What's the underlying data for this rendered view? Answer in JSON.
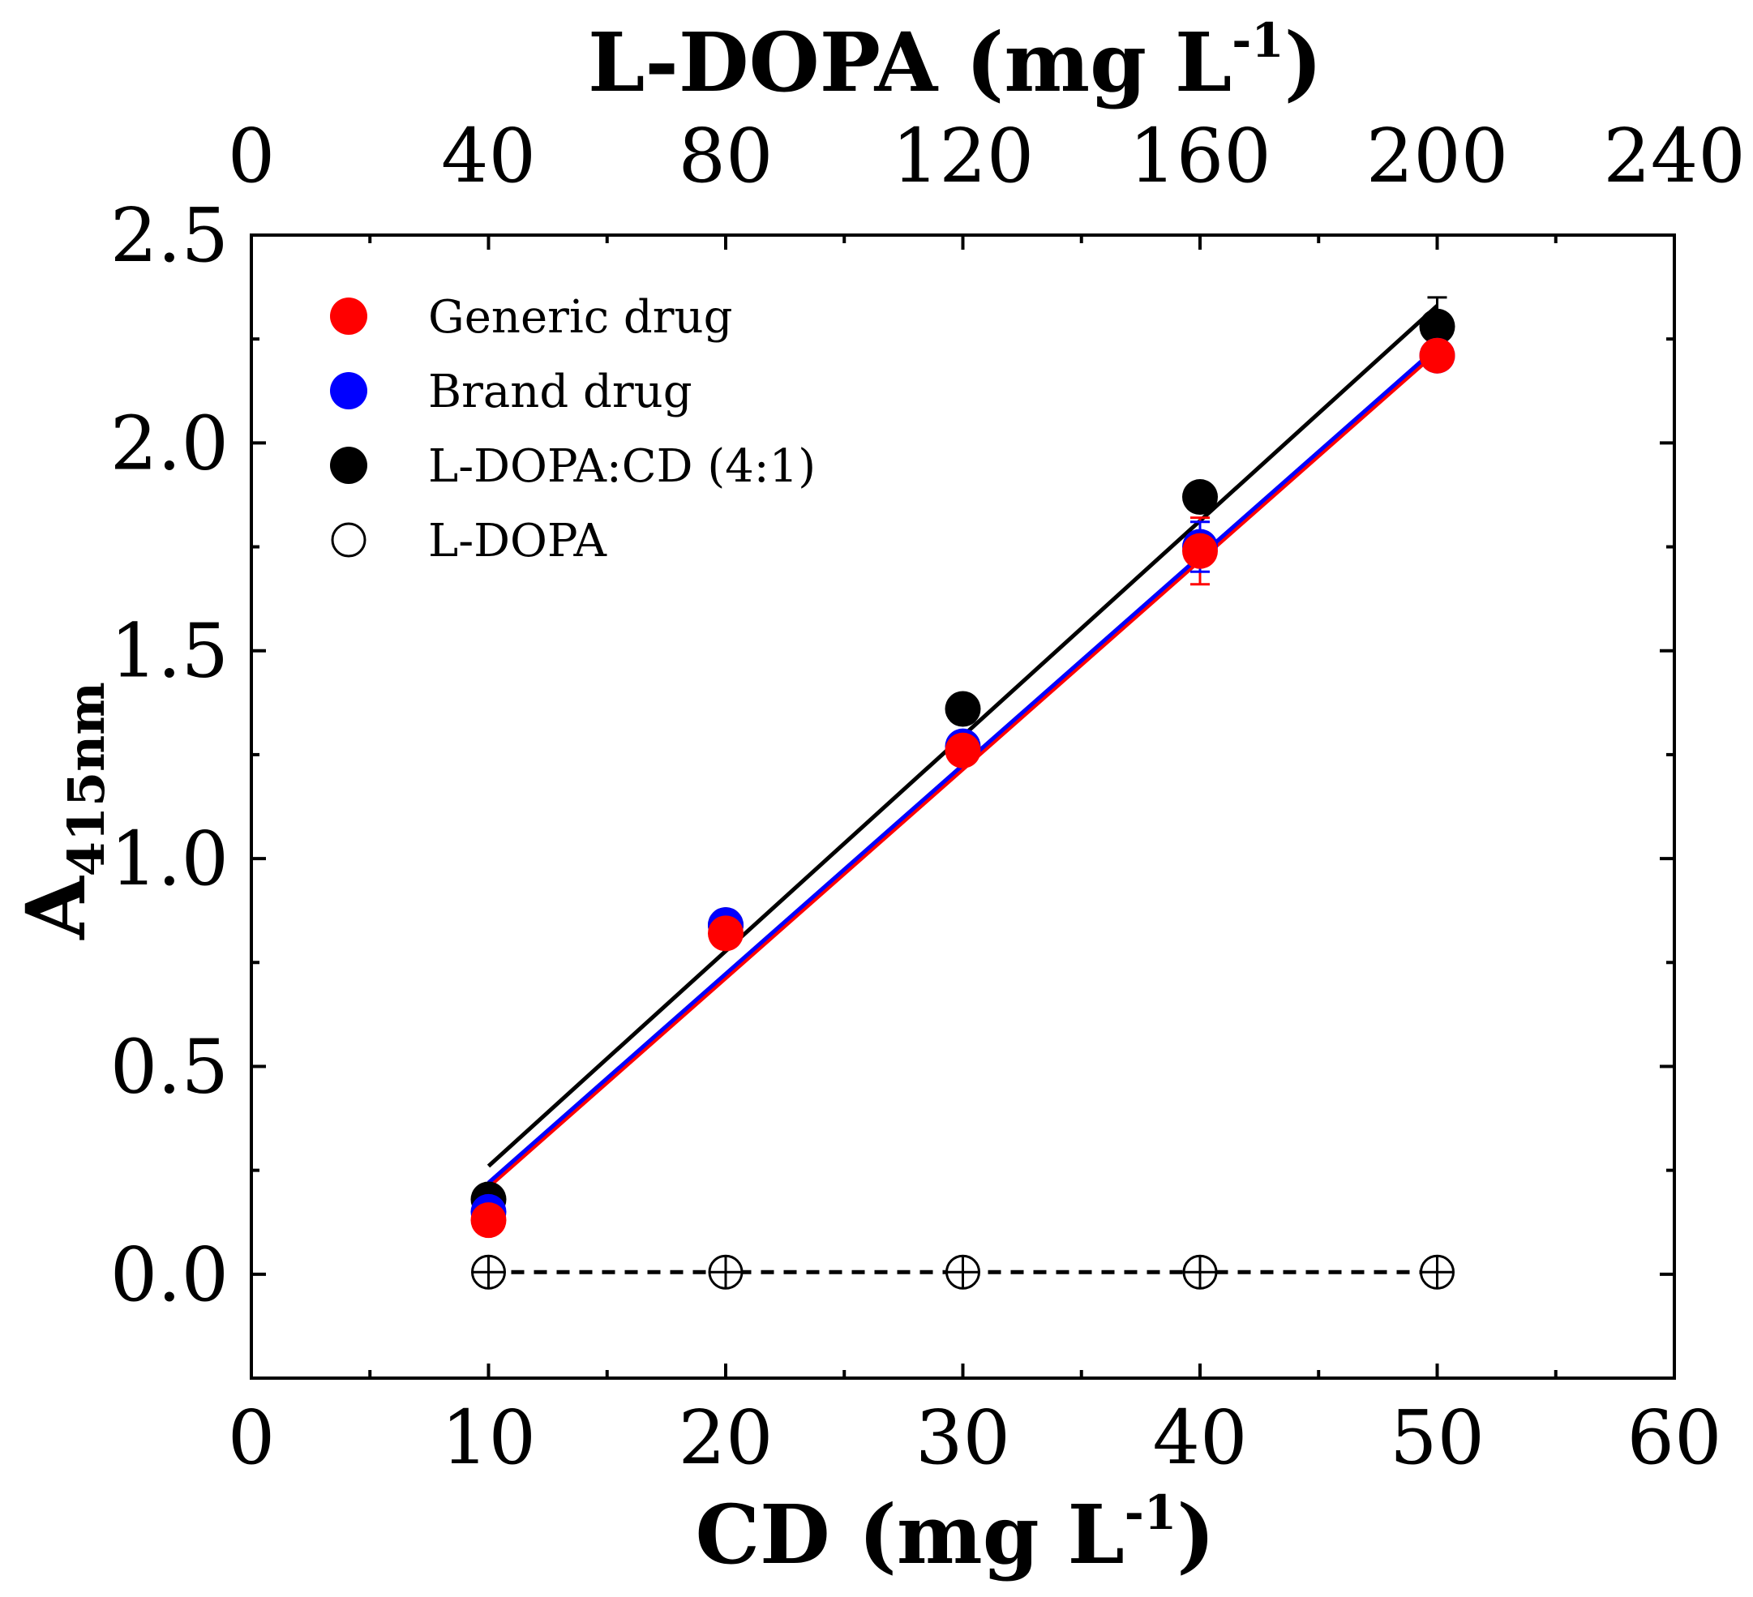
{
  "chart_data": {
    "type": "scatter",
    "title": "",
    "xlabel": {
      "main": "CD (mg L",
      "sup": "-1",
      "end": ")"
    },
    "x2label": {
      "main": "L-DOPA (mg L",
      "sup": "-1",
      "end": ")"
    },
    "ylabel": {
      "main": "A",
      "sub": "415nm"
    },
    "xlim": [
      0,
      60
    ],
    "x2lim": [
      0,
      240
    ],
    "ylim": [
      -0.25,
      2.5
    ],
    "xticks": [
      0,
      10,
      20,
      30,
      40,
      50,
      60
    ],
    "x2ticks": [
      0,
      40,
      80,
      120,
      160,
      200,
      240
    ],
    "yticks": [
      0.0,
      0.5,
      1.0,
      1.5,
      2.0,
      2.5
    ],
    "ytick_labels": [
      "0.0",
      "0.5",
      "1.0",
      "1.5",
      "2.0",
      "2.5"
    ],
    "legend_position": "top-left",
    "series": [
      {
        "name": "Generic drug",
        "color": "#ff0000",
        "marker": "filled-circle",
        "x": [
          10,
          20,
          30,
          40,
          50
        ],
        "y": [
          0.13,
          0.82,
          1.26,
          1.74,
          2.21
        ],
        "err": [
          0.02,
          0.03,
          0.03,
          0.08,
          0.02
        ],
        "fit": {
          "x": [
            10,
            50
          ],
          "y": [
            0.21,
            2.22
          ],
          "color": "#ff0000",
          "dash": false
        }
      },
      {
        "name": "Brand drug",
        "color": "#0000ff",
        "marker": "filled-circle",
        "x": [
          10,
          20,
          30,
          40,
          50
        ],
        "y": [
          0.15,
          0.84,
          1.27,
          1.75,
          2.21
        ],
        "err": [
          0.02,
          0.03,
          0.03,
          0.06,
          0.02
        ],
        "fit": {
          "x": [
            10,
            50
          ],
          "y": [
            0.22,
            2.23
          ],
          "color": "#0000ff",
          "dash": false
        }
      },
      {
        "name": "L-DOPA:CD (4:1)",
        "color": "#000000",
        "marker": "filled-circle",
        "x": [
          10,
          20,
          30,
          40,
          50
        ],
        "y": [
          0.18,
          0.84,
          1.36,
          1.87,
          2.28
        ],
        "err": [
          0.02,
          0.03,
          0.02,
          0.03,
          0.07
        ],
        "fit": {
          "x": [
            10,
            50
          ],
          "y": [
            0.26,
            2.33
          ],
          "color": "#000000",
          "dash": false
        }
      },
      {
        "name": "L-DOPA",
        "color": "#000000",
        "marker": "open-circle",
        "x": [
          10,
          20,
          30,
          40,
          50
        ],
        "y": [
          0.005,
          0.005,
          0.005,
          0.005,
          0.005
        ],
        "err": [
          0.02,
          0.02,
          0.02,
          0.02,
          0.02
        ],
        "fit": {
          "x": [
            10,
            50
          ],
          "y": [
            0.005,
            0.005
          ],
          "color": "#000000",
          "dash": true
        }
      }
    ]
  }
}
